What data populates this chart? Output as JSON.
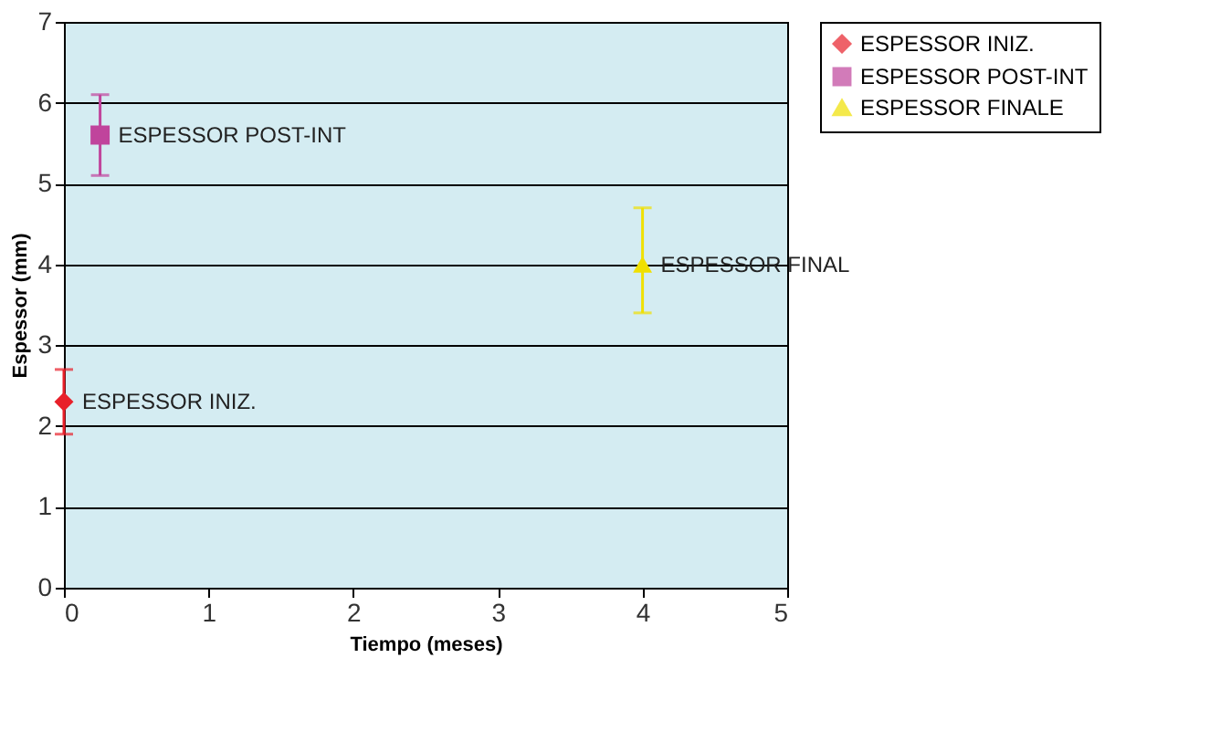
{
  "chart_data": {
    "type": "scatter",
    "xlabel": "Tiempo (meses)",
    "ylabel": "Espessor (mm)",
    "series": [
      {
        "name": "ESPESSOR INIZ.",
        "color": "#e8202a",
        "marker": "diamond",
        "x": [
          0
        ],
        "values": [
          2.3
        ],
        "errors": [
          [
            1.9,
            2.7
          ]
        ]
      },
      {
        "name": "ESPESSOR POST-INT",
        "color": "#c0449c",
        "marker": "square",
        "x": [
          0.25
        ],
        "values": [
          5.6
        ],
        "errors": [
          [
            5.1,
            6.1
          ]
        ]
      },
      {
        "name": "ESPESSOR FINALE",
        "color": "#f0e000",
        "marker": "triangle",
        "x": [
          4
        ],
        "values": [
          4.0
        ],
        "errors": [
          [
            3.4,
            4.7
          ]
        ]
      }
    ],
    "annotations": [
      {
        "text": "ESPESSOR INIZ.",
        "x": 0,
        "y": 2.3
      },
      {
        "text": "ESPESSOR POST-INT",
        "x": 0.25,
        "y": 5.6
      },
      {
        "text": "ESPESSOR FINAL",
        "x": 4,
        "y": 4.0
      }
    ],
    "xlim": [
      0,
      5
    ],
    "xticks": [
      0,
      1,
      2,
      3,
      4,
      5
    ],
    "ylim": [
      0,
      7
    ],
    "yticks": [
      0,
      1,
      2,
      3,
      4,
      5,
      6,
      7
    ],
    "grid": "y",
    "legend": "right"
  }
}
